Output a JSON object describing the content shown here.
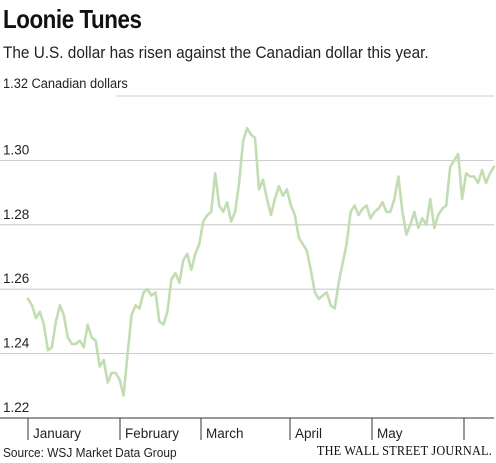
{
  "header": {
    "title": "Loonie Tunes",
    "subtitle": "The U.S. dollar has risen against the Canadian dollar this year."
  },
  "footer": {
    "source": "Source: WSJ Market Data Group",
    "publisher": "THE WALL STREET JOURNAL."
  },
  "colors": {
    "line": "#c3ddb2",
    "grid": "#bdbdbd",
    "axis": "#333333",
    "text": "#222222"
  },
  "chart_data": {
    "type": "line",
    "title": "",
    "xlabel": "",
    "ylabel": "",
    "y_top_label": "1.32 Canadian dollars",
    "ylim": [
      1.22,
      1.32
    ],
    "y_ticks": [
      1.24,
      1.26,
      1.28,
      1.3
    ],
    "y_tick_labels": [
      "1.24",
      "1.26",
      "1.28",
      "1.30"
    ],
    "y_min_label": "1.22",
    "grid": true,
    "months": [
      "January",
      "February",
      "March",
      "April",
      "May"
    ],
    "series": [
      {
        "values": [
          1.257,
          1.255,
          1.251,
          1.253,
          1.249,
          1.241,
          1.242,
          1.25,
          1.255,
          1.252,
          1.245,
          1.243,
          1.243,
          1.244,
          1.242,
          1.249,
          1.245,
          1.244,
          1.236,
          1.238,
          1.231,
          1.234,
          1.234,
          1.232,
          1.227,
          1.24,
          1.252,
          1.255,
          1.254,
          1.259,
          1.26,
          1.258,
          1.259,
          1.25,
          1.249,
          1.253,
          1.263,
          1.265,
          1.262,
          1.269,
          1.271,
          1.266,
          1.271,
          1.274,
          1.281,
          1.283,
          1.284,
          1.296,
          1.286,
          1.284,
          1.287,
          1.281,
          1.284,
          1.293,
          1.306,
          1.31,
          1.308,
          1.307,
          1.291,
          1.294,
          1.288,
          1.283,
          1.288,
          1.292,
          1.289,
          1.291,
          1.286,
          1.283,
          1.276,
          1.274,
          1.272,
          1.266,
          1.259,
          1.257,
          1.258,
          1.259,
          1.255,
          1.254,
          1.262,
          1.268,
          1.274,
          1.284,
          1.286,
          1.283,
          1.285,
          1.286,
          1.282,
          1.284,
          1.285,
          1.287,
          1.284,
          1.284,
          1.288,
          1.295,
          1.284,
          1.277,
          1.28,
          1.284,
          1.279,
          1.282,
          1.28,
          1.288,
          1.279,
          1.283,
          1.285,
          1.286,
          1.298,
          1.3,
          1.302,
          1.288,
          1.296,
          1.295,
          1.295,
          1.293,
          1.297,
          1.293,
          1.296,
          1.298
        ]
      }
    ]
  }
}
